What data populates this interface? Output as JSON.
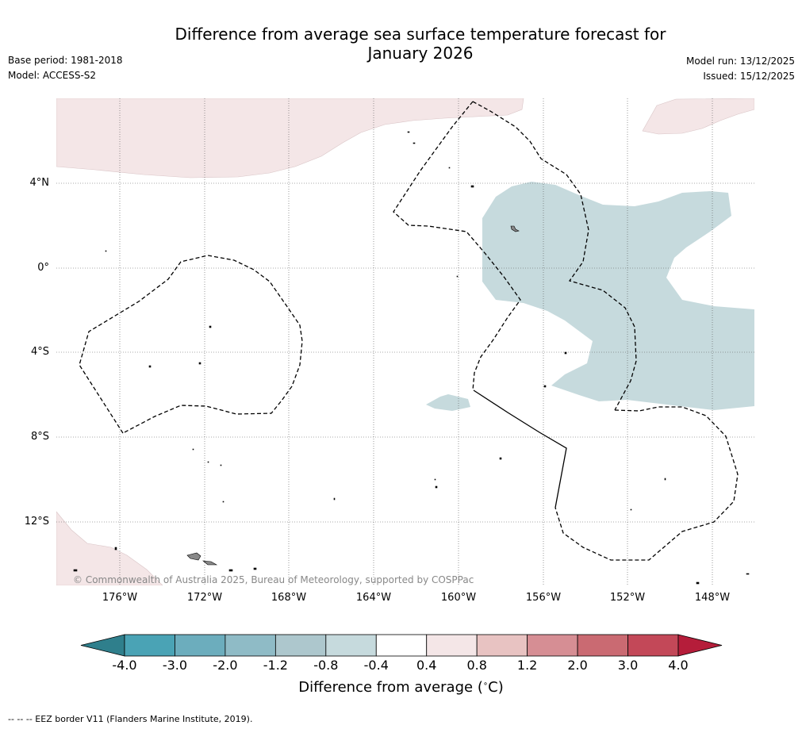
{
  "title_line1": "Difference from average sea surface temperature forecast for",
  "title_line2": "January 2026",
  "base_period": "Base period: 1981-2018",
  "model": "Model: ACCESS-S2",
  "model_run": "Model run: 13/12/2025",
  "issued": "Issued: 15/12/2025",
  "copyright": "© Commonwealth of Australia 2025, Bureau of Meteorology, supported by COSPPac",
  "footer": "--  --  -- EEZ border V11 (Flanders Marine Institute, 2019).",
  "lat_labels": [
    "4°N",
    "0°",
    "4°S",
    "8°S",
    "12°S"
  ],
  "lon_labels": [
    "176°W",
    "172°W",
    "168°W",
    "164°W",
    "160°W",
    "156°W",
    "152°W",
    "148°W"
  ],
  "colorbar": {
    "title": "Difference from average",
    "unit": "( C)",
    "ticks": [
      "-4.0",
      "-3.0",
      "-2.0",
      "-1.2",
      "-0.8",
      "-0.4",
      "0.4",
      "0.8",
      "1.2",
      "2.0",
      "3.0",
      "4.0"
    ],
    "colors": [
      "#2f7f8c",
      "#4aa3b5",
      "#6cadbd",
      "#8fbbc6",
      "#adc7cd",
      "#c6dadd",
      "#ffffff",
      "#f4e6e7",
      "#e8c3c2",
      "#d68e94",
      "#ca6a72",
      "#c34858",
      "#b51d3a"
    ]
  },
  "colors": {
    "cool_anomaly": "#c6dadd",
    "warm_anomaly": "#f4e6e7"
  }
}
